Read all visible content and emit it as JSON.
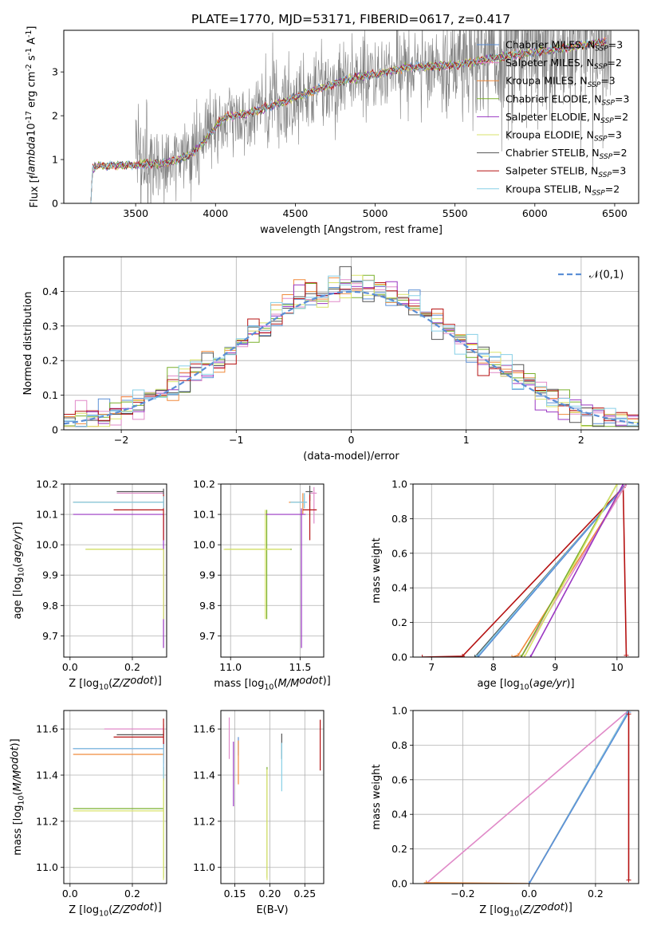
{
  "figure_title": "PLATE=1770, MJD=53171, FIBERID=0617, z=0.417",
  "colors": {
    "chabrier_miles": "#5b8fd6",
    "salpeter_miles": "#e08ac8",
    "kroupa_miles": "#f08a3c",
    "chabrier_elodie": "#7ab02c",
    "salpeter_elodie": "#9a37c2",
    "kroupa_elodie": "#d9e36b",
    "chabrier_stelib": "#555555",
    "salpeter_stelib": "#b51212",
    "kroupa_stelib": "#87cfe6",
    "data": "#808080",
    "normal": "#5b8fd6"
  },
  "chart_data": [
    {
      "id": "spectrum",
      "type": "line",
      "title": "PLATE=1770, MJD=53171, FIBERID=0617, z=0.417",
      "xlabel": "wavelength [Angstrom, rest frame]",
      "ylabel": "Flux [f$_\\lambda$10$^{-17}$ erg cm$^{-2}$ s$^{-1}$ A$^{-1}$]",
      "xlim": [
        3050,
        6650
      ],
      "ylim": [
        0,
        3.95
      ],
      "xticks": [
        3500,
        4000,
        4500,
        5000,
        5500,
        6000,
        6500
      ],
      "yticks": [
        0,
        1,
        2,
        3
      ],
      "grid": false,
      "legend_position": "top-right",
      "legend": [
        "Chabrier MILES, N$_{SSP}$=3",
        "Salpeter MILES, N$_{SSP}$=2",
        "Kroupa MILES, N$_{SSP}$=3",
        "Chabrier ELODIE, N$_{SSP}$=3",
        "Salpeter ELODIE, N$_{SSP}$=2",
        "Kroupa ELODIE, N$_{SSP}$=3",
        "Chabrier STELIB, N$_{SSP}$=2",
        "Salpeter STELIB, N$_{SSP}$=3",
        "Kroupa STELIB, N$_{SSP}$=2"
      ],
      "model_continuum": {
        "x": [
          3220,
          3230,
          3260,
          3500,
          3700,
          3850,
          3950,
          4050,
          4200,
          4400,
          4600,
          4800,
          5000,
          5200,
          5500,
          5800,
          6000,
          6200,
          6450
        ],
        "y": [
          0,
          0.8,
          0.85,
          0.88,
          0.92,
          1.12,
          1.5,
          1.95,
          2.05,
          2.28,
          2.55,
          2.8,
          2.95,
          3.1,
          3.15,
          3.35,
          3.45,
          3.55,
          3.7
        ]
      },
      "data_range": [
        3500,
        6480
      ]
    },
    {
      "id": "residuals",
      "type": "line",
      "xlabel": "(data-model)/error",
      "ylabel": "Normed distribution",
      "xlim": [
        -2.5,
        2.5
      ],
      "ylim": [
        0,
        0.5
      ],
      "xticks": [
        -2,
        -1,
        0,
        1,
        2
      ],
      "yticks": [
        0,
        0.1,
        0.2,
        0.3,
        0.4
      ],
      "grid": true,
      "legend_position": "top-right",
      "legend": [
        "$\\mathcal{N}(0,1)$"
      ],
      "bin_width": 0.1,
      "bin_edges": [
        -2.5,
        2.5
      ]
    },
    {
      "id": "age_vs_Z",
      "type": "scatter",
      "xlabel": "Z [log$_{10}$($Z/Z_\\odot$)]",
      "ylabel": "age  [log$_{10}$($age/yr$)]",
      "xlim": [
        -0.02,
        0.31
      ],
      "ylim": [
        9.63,
        10.2
      ],
      "xticks": [
        0.0,
        0.2
      ],
      "yticks": [
        9.7,
        9.8,
        9.9,
        10.0,
        10.1,
        10.2
      ],
      "grid": true,
      "series": [
        {
          "color": "chabrier_miles",
          "x": 0.3,
          "y": 10.14,
          "xerr": [
            0.29,
            0.0
          ],
          "yerr": [
            0.02,
            0.02
          ]
        },
        {
          "color": "salpeter_miles",
          "x": 0.3,
          "y": 10.17,
          "xerr": [
            0.15,
            0.0
          ],
          "yerr": [
            0.01,
            0.01
          ]
        },
        {
          "color": "kroupa_miles",
          "x": 0.3,
          "y": 10.14,
          "xerr": [
            0.29,
            0.0
          ],
          "yerr": [
            0.02,
            0.02
          ]
        },
        {
          "color": "chabrier_elodie",
          "x": 0.3,
          "y": 9.985,
          "xerr": [
            0.25,
            0.0
          ],
          "yerr": [
            0.23,
            0.0
          ]
        },
        {
          "color": "salpeter_elodie",
          "x": 0.3,
          "y": 10.1,
          "xerr": [
            0.29,
            0.0
          ],
          "yerr": [
            0.44,
            0.0
          ]
        },
        {
          "color": "kroupa_elodie",
          "x": 0.3,
          "y": 9.985,
          "xerr": [
            0.25,
            0.0
          ],
          "yerr": [
            0.23,
            0.0
          ]
        },
        {
          "color": "chabrier_stelib",
          "x": 0.3,
          "y": 10.175,
          "xerr": [
            0.15,
            0.0
          ],
          "yerr": [
            0.01,
            0.01
          ]
        },
        {
          "color": "salpeter_stelib",
          "x": 0.3,
          "y": 10.115,
          "xerr": [
            0.16,
            0.0
          ],
          "yerr": [
            0.1,
            0.05
          ]
        },
        {
          "color": "kroupa_stelib",
          "x": 0.3,
          "y": 10.14,
          "xerr": [
            0.29,
            0.0
          ],
          "yerr": [
            0.02,
            0.02
          ]
        }
      ]
    },
    {
      "id": "age_vs_mass",
      "type": "scatter",
      "xlabel": "mass [log$_{10}$($M/M_\\odot$)]",
      "ylabel": "",
      "xlim": [
        10.93,
        11.67
      ],
      "ylim": [
        9.63,
        10.2
      ],
      "xticks": [
        11.0,
        11.5
      ],
      "yticks": [
        9.7,
        9.8,
        9.9,
        10.0,
        10.1,
        10.2
      ],
      "grid": true,
      "series": [
        {
          "color": "chabrier_miles",
          "x": 11.53,
          "y": 10.14,
          "xerr": [
            0.1,
            0.02
          ],
          "yerr": [
            0.02,
            0.03
          ]
        },
        {
          "color": "salpeter_miles",
          "x": 11.6,
          "y": 10.17,
          "xerr": [
            0.03,
            0.02
          ],
          "yerr": [
            0.1,
            0.02
          ]
        },
        {
          "color": "kroupa_miles",
          "x": 11.52,
          "y": 10.14,
          "xerr": [
            0.1,
            0.02
          ],
          "yerr": [
            0.04,
            0.03
          ]
        },
        {
          "color": "chabrier_elodie",
          "x": 11.26,
          "y": 9.985,
          "xerr": [
            0.3,
            0.18
          ],
          "yerr": [
            0.23,
            0.13
          ]
        },
        {
          "color": "salpeter_elodie",
          "x": 11.51,
          "y": 10.1,
          "xerr": [
            0.26,
            0.03
          ],
          "yerr": [
            0.44,
            0.02
          ]
        },
        {
          "color": "kroupa_elodie",
          "x": 11.25,
          "y": 9.985,
          "xerr": [
            0.3,
            0.18
          ],
          "yerr": [
            0.23,
            0.13
          ]
        },
        {
          "color": "chabrier_stelib",
          "x": 11.57,
          "y": 10.175,
          "xerr": [
            0.03,
            0.02
          ],
          "yerr": [
            0.03,
            0.02
          ]
        },
        {
          "color": "salpeter_stelib",
          "x": 11.57,
          "y": 10.115,
          "xerr": [
            0.05,
            0.05
          ],
          "yerr": [
            0.1,
            0.05
          ]
        },
        {
          "color": "kroupa_stelib",
          "x": 11.53,
          "y": 10.14,
          "xerr": [
            0.1,
            0.02
          ],
          "yerr": [
            0.02,
            0.03
          ]
        }
      ]
    },
    {
      "id": "mass_weight_vs_age",
      "type": "line",
      "xlabel": "age  [log$_{10}$($age/yr$)]",
      "ylabel": "mass weight",
      "xlim": [
        6.7,
        10.35
      ],
      "ylim": [
        0,
        1.0
      ],
      "xticks": [
        7,
        8,
        9,
        10
      ],
      "yticks": [
        0.0,
        0.2,
        0.4,
        0.6,
        0.8,
        1.0
      ],
      "grid": true,
      "series": [
        {
          "color": "salpeter_stelib",
          "x": [
            6.85,
            7.5,
            10.1,
            10.15
          ],
          "y": [
            0.0,
            0.005,
            0.98,
            0.01
          ]
        },
        {
          "color": "chabrier_stelib",
          "x": [
            7.7,
            10.15
          ],
          "y": [
            0.0,
            1.0
          ]
        },
        {
          "color": "kroupa_stelib",
          "x": [
            7.72,
            10.15
          ],
          "y": [
            0.0,
            1.0
          ]
        },
        {
          "color": "chabrier_miles",
          "x": [
            7.75,
            10.15
          ],
          "y": [
            0.0,
            1.0
          ]
        },
        {
          "color": "kroupa_miles",
          "x": [
            8.3,
            8.4,
            10.15
          ],
          "y": [
            0.0,
            0.01,
            1.0
          ]
        },
        {
          "color": "salpeter_miles",
          "x": [
            8.45,
            10.15
          ],
          "y": [
            0.0,
            1.0
          ]
        },
        {
          "color": "chabrier_elodie",
          "x": [
            8.45,
            10.0
          ],
          "y": [
            0.0,
            1.0
          ]
        },
        {
          "color": "kroupa_elodie",
          "x": [
            8.5,
            10.0
          ],
          "y": [
            0.0,
            1.0
          ]
        },
        {
          "color": "salpeter_elodie",
          "x": [
            8.6,
            10.1
          ],
          "y": [
            0.0,
            1.0
          ]
        }
      ]
    },
    {
      "id": "mass_vs_Z",
      "type": "scatter",
      "xlabel": "Z [log$_{10}$($Z/Z_\\odot$)]",
      "ylabel": "mass [log$_{10}$($M/M_\\odot$)]",
      "xlim": [
        -0.02,
        0.31
      ],
      "ylim": [
        10.93,
        11.68
      ],
      "xticks": [
        0.0,
        0.2
      ],
      "yticks": [
        11.0,
        11.2,
        11.4,
        11.6
      ],
      "grid": true,
      "series": [
        {
          "color": "chabrier_miles",
          "x": 0.3,
          "y": 11.515,
          "xerr": [
            0.29,
            0.0
          ],
          "yerr": [
            0.03,
            0.03
          ]
        },
        {
          "color": "salpeter_miles",
          "x": 0.3,
          "y": 11.6,
          "xerr": [
            0.19,
            0.0
          ],
          "yerr": [
            0.03,
            0.02
          ]
        },
        {
          "color": "kroupa_miles",
          "x": 0.3,
          "y": 11.49,
          "xerr": [
            0.29,
            0.0
          ],
          "yerr": [
            0.04,
            0.03
          ]
        },
        {
          "color": "chabrier_elodie",
          "x": 0.3,
          "y": 11.255,
          "xerr": [
            0.29,
            0.0
          ],
          "yerr": [
            0.3,
            0.18
          ]
        },
        {
          "color": "salpeter_elodie",
          "x": 0.3,
          "y": 11.515,
          "xerr": [
            0.29,
            0.0
          ],
          "yerr": [
            0.14,
            0.03
          ]
        },
        {
          "color": "kroupa_elodie",
          "x": 0.3,
          "y": 11.245,
          "xerr": [
            0.29,
            0.0
          ],
          "yerr": [
            0.3,
            0.18
          ]
        },
        {
          "color": "chabrier_stelib",
          "x": 0.3,
          "y": 11.575,
          "xerr": [
            0.15,
            0.0
          ],
          "yerr": [
            0.03,
            0.02
          ]
        },
        {
          "color": "salpeter_stelib",
          "x": 0.3,
          "y": 11.565,
          "xerr": [
            0.16,
            0.0
          ],
          "yerr": [
            0.05,
            0.08
          ]
        },
        {
          "color": "kroupa_stelib",
          "x": 0.3,
          "y": 11.515,
          "xerr": [
            0.29,
            0.0
          ],
          "yerr": [
            0.13,
            0.02
          ]
        }
      ]
    },
    {
      "id": "mass_vs_EBV",
      "type": "scatter",
      "xlabel": "E(B-V)",
      "ylabel": "",
      "xlim": [
        0.13,
        0.277
      ],
      "ylim": [
        10.93,
        11.68
      ],
      "xticks": [
        0.15,
        0.2,
        0.25
      ],
      "yticks": [
        11.0,
        11.2,
        11.4,
        11.6
      ],
      "grid": true,
      "series": [
        {
          "color": "salpeter_miles",
          "x": 0.142,
          "y": 11.6,
          "yerr": [
            0.13,
            0.05
          ]
        },
        {
          "color": "salpeter_elodie",
          "x": 0.148,
          "y": 11.515,
          "yerr": [
            0.25,
            0.03
          ]
        },
        {
          "color": "chabrier_miles",
          "x": 0.155,
          "y": 11.515,
          "yerr": [
            0.03,
            0.05
          ]
        },
        {
          "color": "kroupa_miles",
          "x": 0.155,
          "y": 11.49,
          "yerr": [
            0.13,
            0.06
          ]
        },
        {
          "color": "chabrier_elodie",
          "x": 0.196,
          "y": 11.255,
          "yerr": [
            0.3,
            0.18
          ]
        },
        {
          "color": "kroupa_elodie",
          "x": 0.196,
          "y": 11.245,
          "yerr": [
            0.3,
            0.18
          ]
        },
        {
          "color": "chabrier_stelib",
          "x": 0.217,
          "y": 11.52,
          "yerr": [
            0.05,
            0.06
          ]
        },
        {
          "color": "kroupa_stelib",
          "x": 0.217,
          "y": 11.46,
          "yerr": [
            0.13,
            0.08
          ]
        },
        {
          "color": "salpeter_stelib",
          "x": 0.272,
          "y": 11.52,
          "yerr": [
            0.1,
            0.12
          ]
        }
      ]
    },
    {
      "id": "mass_weight_vs_Z",
      "type": "line",
      "xlabel": "Z [log$_{10}$($Z/Z_\\odot$)]",
      "ylabel": "mass weight",
      "xlim": [
        -0.35,
        0.33
      ],
      "ylim": [
        0,
        1.0
      ],
      "xticks": [
        -0.2,
        0.0,
        0.2
      ],
      "yticks": [
        0.0,
        0.2,
        0.4,
        0.6,
        0.8,
        1.0
      ],
      "grid": true,
      "series": [
        {
          "color": "salpeter_miles",
          "x": [
            -0.31,
            0.3
          ],
          "y": [
            0.0,
            1.0
          ]
        },
        {
          "color": "kroupa_miles",
          "x": [
            -0.31,
            0.0,
            0.3
          ],
          "y": [
            0.005,
            0.0,
            1.0
          ]
        },
        {
          "color": "chabrier_stelib",
          "x": [
            0.0,
            0.3
          ],
          "y": [
            0.0,
            1.0
          ]
        },
        {
          "color": "kroupa_stelib",
          "x": [
            0.0,
            0.3
          ],
          "y": [
            0.0,
            1.0
          ]
        },
        {
          "color": "chabrier_miles",
          "x": [
            0.0,
            0.3
          ],
          "y": [
            0.0,
            0.99
          ]
        },
        {
          "color": "salpeter_stelib",
          "x": [
            0.3,
            0.3
          ],
          "y": [
            0.02,
            0.98
          ]
        }
      ]
    }
  ]
}
